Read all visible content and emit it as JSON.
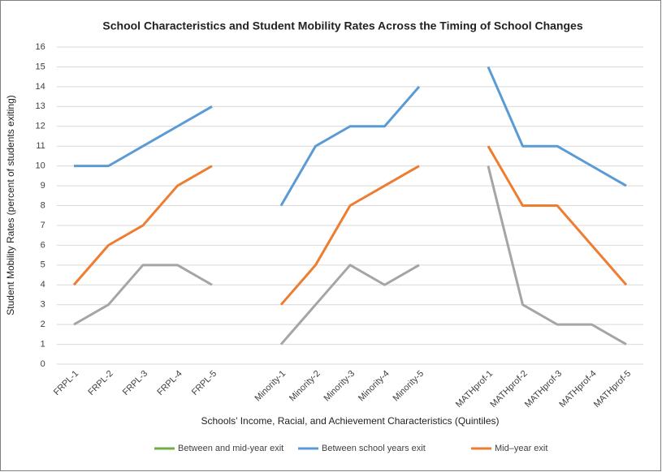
{
  "chart_data": {
    "type": "line",
    "title": "School Characteristics and Student Mobility Rates Across the Timing of School Changes",
    "x_label": "Schools’ Income, Racial, and Achievement Characteristics (Quintiles)",
    "y_label": "Student Mobility Rates (percent of students exiting)",
    "categories": [
      "FRPL-1",
      "FRPL-2",
      "FRPL-3",
      "FRPL-4",
      "FRPL-5",
      null,
      "Minority-1",
      "Minority-2",
      "Minority-3",
      "Minority-4",
      "Minority-5",
      null,
      "MATHprof-1",
      "MATHprof-2",
      "MATHprof-3",
      "MATHprof-4",
      "MATHprof-5"
    ],
    "series": [
      {
        "name": "Between and mid-year exit",
        "color": "#a5a5a5",
        "legend_color": "#70ad47",
        "values": [
          2,
          3,
          5,
          5,
          4,
          null,
          1,
          3,
          5,
          4,
          5,
          null,
          10,
          3,
          2,
          2,
          1
        ]
      },
      {
        "name": "Between school years exit",
        "color": "#5b9bd5",
        "values": [
          10,
          10,
          11,
          12,
          13,
          null,
          8,
          11,
          12,
          12,
          14,
          null,
          15,
          11,
          11,
          10,
          9
        ]
      },
      {
        "name": "Mid–year exit",
        "color": "#ed7d31",
        "values": [
          4,
          6,
          7,
          9,
          10,
          null,
          3,
          5,
          8,
          9,
          10,
          null,
          11,
          8,
          8,
          6,
          4
        ]
      }
    ],
    "ylim": [
      0,
      16
    ],
    "yticks": [
      0,
      1,
      2,
      3,
      4,
      5,
      6,
      7,
      8,
      9,
      10,
      11,
      12,
      13,
      14,
      15,
      16
    ],
    "grid": true,
    "legend": "bottom"
  }
}
